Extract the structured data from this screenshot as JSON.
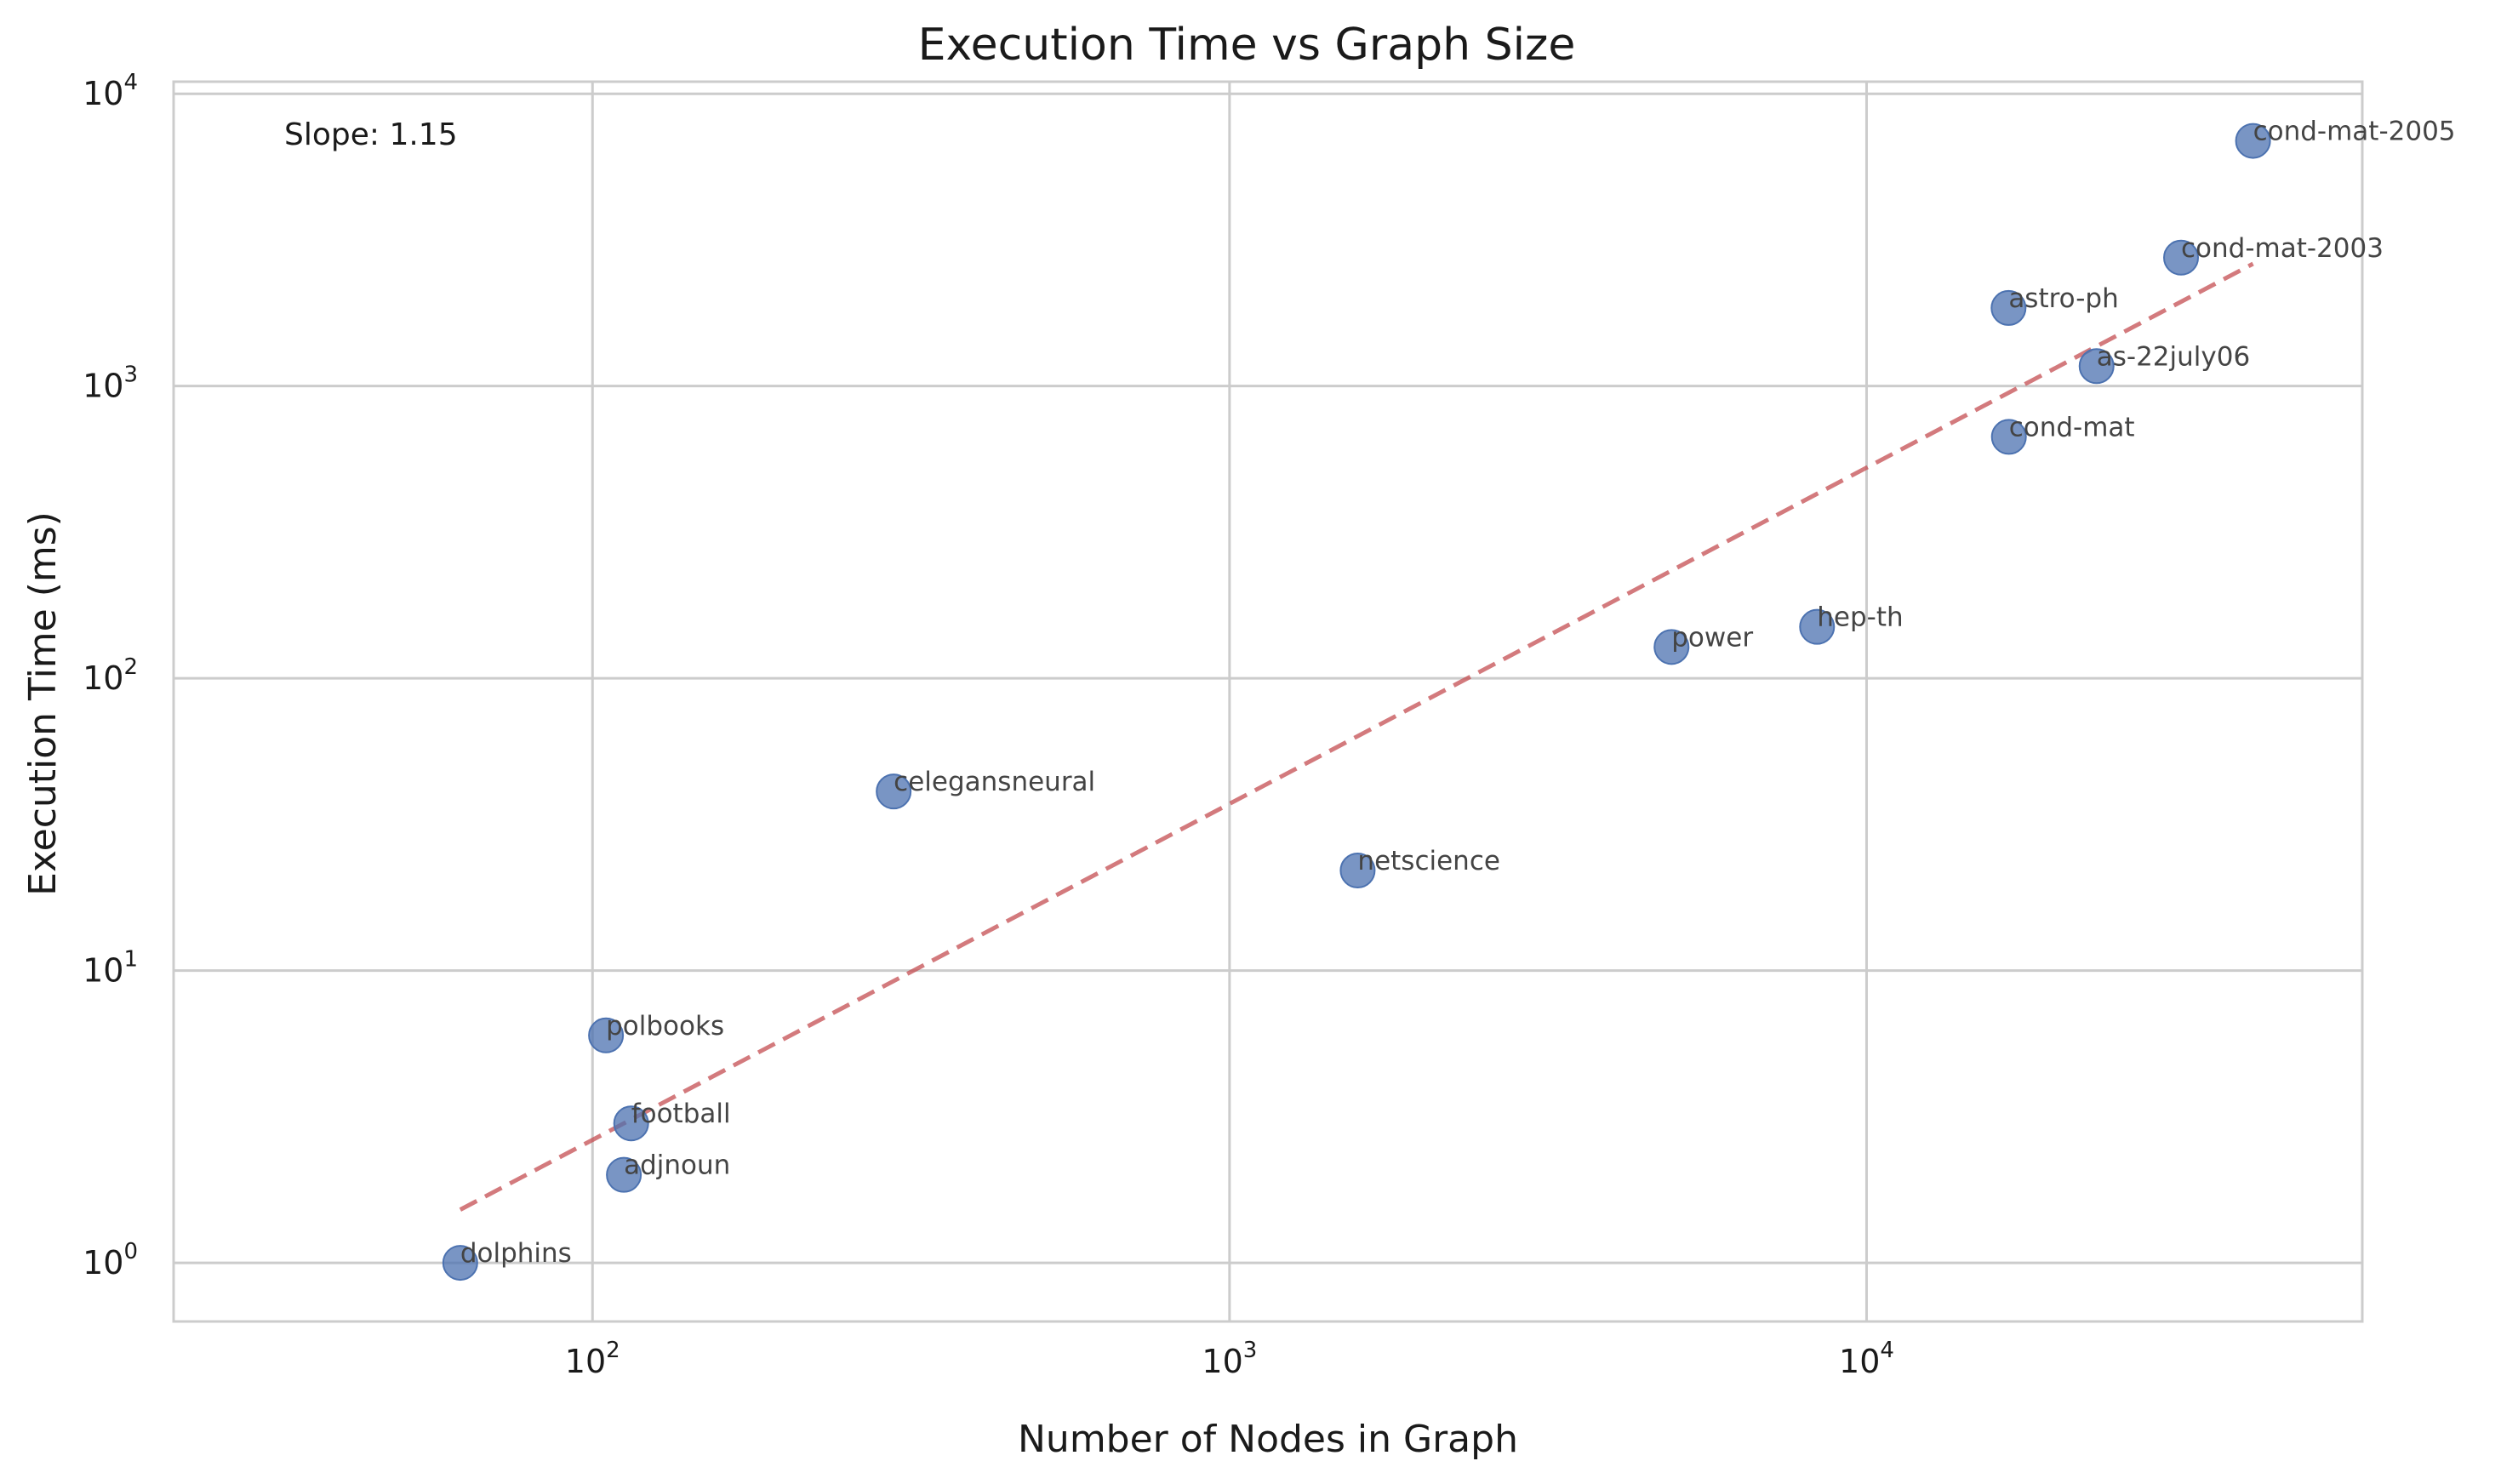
{
  "chart_data": {
    "type": "scatter",
    "title": "Execution Time vs Graph Size",
    "xlabel": "Number of Nodes in Graph",
    "ylabel": "Execution Time (ms)",
    "xscale": "log",
    "yscale": "log",
    "xlim": [
      22,
      60000
    ],
    "ylim": [
      0.63,
      11000
    ],
    "grid": true,
    "x_ticks": [
      {
        "base": "10",
        "exp": "2",
        "value": 100
      },
      {
        "base": "10",
        "exp": "3",
        "value": 1000
      },
      {
        "base": "10",
        "exp": "4",
        "value": 10000
      }
    ],
    "y_ticks": [
      {
        "base": "10",
        "exp": "0",
        "value": 1
      },
      {
        "base": "10",
        "exp": "1",
        "value": 10
      },
      {
        "base": "10",
        "exp": "2",
        "value": 100
      },
      {
        "base": "10",
        "exp": "3",
        "value": 1000
      },
      {
        "base": "10",
        "exp": "4",
        "value": 10000
      }
    ],
    "points": [
      {
        "label": "dolphins",
        "x": 62,
        "y": 1
      },
      {
        "label": "polbooks",
        "x": 105,
        "y": 6
      },
      {
        "label": "football",
        "x": 115,
        "y": 3
      },
      {
        "label": "adjnoun",
        "x": 112,
        "y": 2
      },
      {
        "label": "celegansneural",
        "x": 297,
        "y": 41
      },
      {
        "label": "netscience",
        "x": 1589,
        "y": 22
      },
      {
        "label": "power",
        "x": 4941,
        "y": 128
      },
      {
        "label": "hep-th",
        "x": 8361,
        "y": 150
      },
      {
        "label": "cond-mat",
        "x": 16726,
        "y": 670
      },
      {
        "label": "astro-ph",
        "x": 16706,
        "y": 1850
      },
      {
        "label": "as-22july06",
        "x": 22963,
        "y": 1170
      },
      {
        "label": "cond-mat-2003",
        "x": 31163,
        "y": 2750
      },
      {
        "label": "cond-mat-2005",
        "x": 40421,
        "y": 6900
      }
    ],
    "fit_line": {
      "x": [
        62,
        40421
      ],
      "y": [
        1.52,
        2620
      ],
      "style": "dashed"
    },
    "annotation": "Slope: 1.15",
    "colors": {
      "points": "#4c72b0",
      "fit": "#c44e52",
      "grid": "#cccccc",
      "spine": "#cccccc"
    }
  }
}
